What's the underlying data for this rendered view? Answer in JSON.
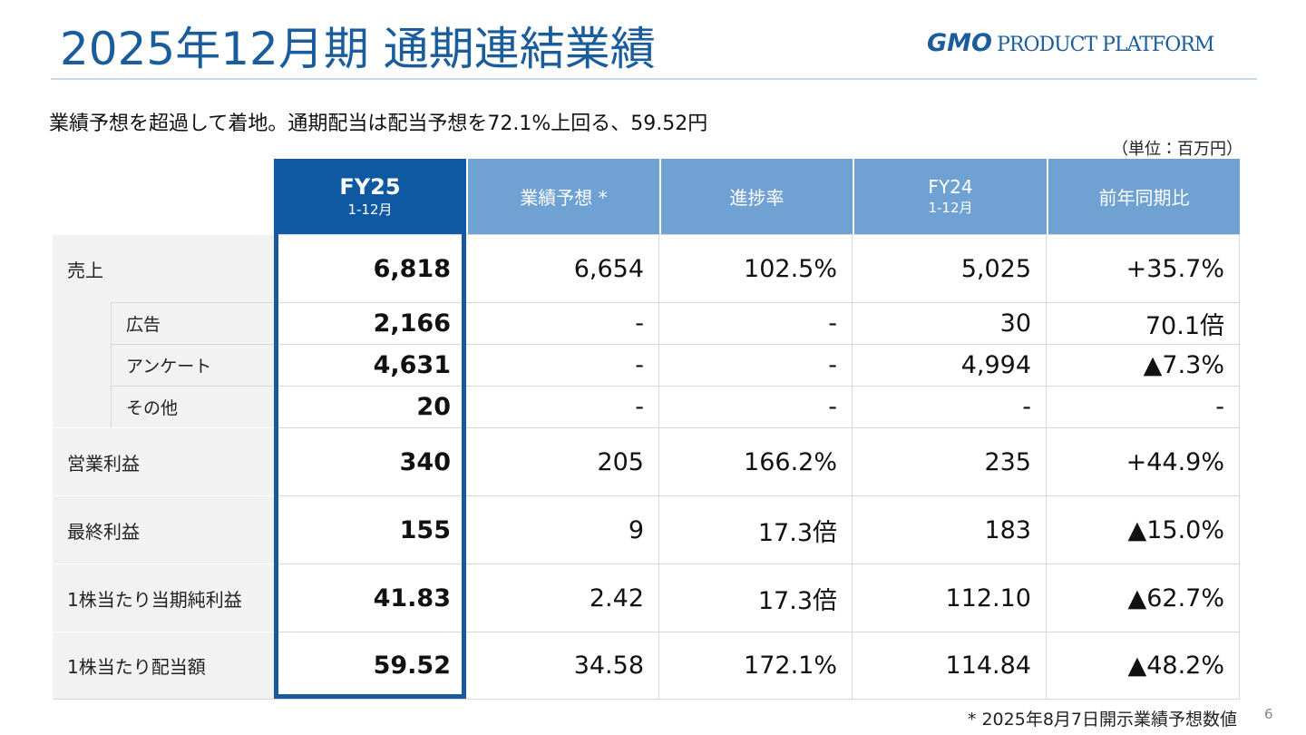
{
  "header": {
    "title": "2025年12月期 通期連結業績",
    "logo": {
      "brand": "GMO",
      "name": "PRODUCT PLATFORM"
    }
  },
  "subtitle": "業績予想を超過して着地。通期配当は配当予想を72.1%上回る、59.52円",
  "unit": "（単位：百万円）",
  "table": {
    "columns": [
      {
        "label": "FY25",
        "sub": "1-12月"
      },
      {
        "label": "業績予想 *"
      },
      {
        "label": "進捗率"
      },
      {
        "label": "FY24",
        "sub": "1-12月"
      },
      {
        "label": "前年同期比"
      }
    ],
    "rows": [
      {
        "label": "売上",
        "values": [
          "6,818",
          "6,654",
          "102.5%",
          "5,025",
          "+35.7%"
        ],
        "breakdown": [
          {
            "label": "広告",
            "values": [
              "2,166",
              "-",
              "-",
              "30",
              "70.1倍"
            ]
          },
          {
            "label": "アンケート",
            "values": [
              "4,631",
              "-",
              "-",
              "4,994",
              "▲7.3%"
            ]
          },
          {
            "label": "その他",
            "values": [
              "20",
              "-",
              "-",
              "-",
              "-"
            ]
          }
        ]
      },
      {
        "label": "営業利益",
        "values": [
          "340",
          "205",
          "166.2%",
          "235",
          "+44.9%"
        ]
      },
      {
        "label": "最終利益",
        "values": [
          "155",
          "9",
          "17.3倍",
          "183",
          "▲15.0%"
        ]
      },
      {
        "label": "1株当たり当期純利益",
        "values": [
          "41.83",
          "2.42",
          "17.3倍",
          "112.10",
          "▲62.7%"
        ]
      },
      {
        "label": "1株当たり配当額",
        "values": [
          "59.52",
          "34.58",
          "172.1%",
          "114.84",
          "▲48.2%"
        ]
      }
    ]
  },
  "footnote": "* 2025年8月7日開示業績予想数値",
  "page_number": "6"
}
